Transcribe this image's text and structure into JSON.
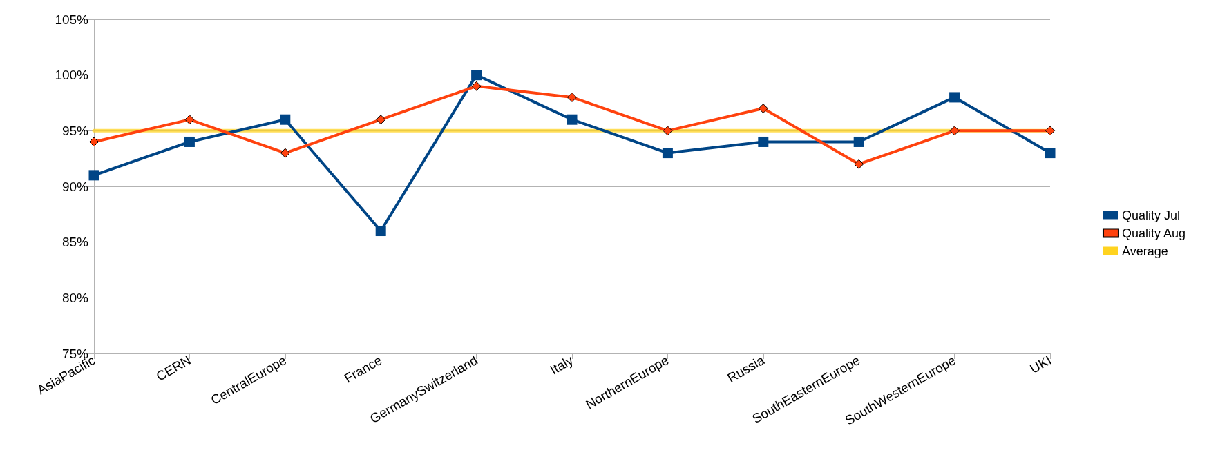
{
  "chart_data": {
    "type": "line",
    "categories": [
      "AsiaPacific",
      "CERN",
      "CentralEurope",
      "France",
      "GermanySwitzerland",
      "Italy",
      "NorthernEurope",
      "Russia",
      "SouthEasternEurope",
      "SouthWesternEurope",
      "UKI"
    ],
    "series": [
      {
        "name": "Quality Jul",
        "color": "#004586",
        "marker": "square",
        "values": [
          91,
          94,
          96,
          86,
          100,
          96,
          93,
          94,
          94,
          98,
          93
        ]
      },
      {
        "name": "Quality Aug",
        "color": "#ff420e",
        "marker": "diamond",
        "values": [
          94,
          96,
          93,
          96,
          99,
          98,
          95,
          97,
          92,
          95,
          95
        ]
      },
      {
        "name": "Average",
        "color": "#ffd320",
        "marker": "none",
        "values": [
          95,
          95,
          95,
          95,
          95,
          95,
          95,
          95,
          95,
          95,
          95
        ]
      }
    ],
    "ylim": [
      75,
      105
    ],
    "yticks": [
      {
        "value": 75,
        "label": "75%"
      },
      {
        "value": 80,
        "label": "80%"
      },
      {
        "value": 85,
        "label": "85%"
      },
      {
        "value": 90,
        "label": "90%"
      },
      {
        "value": 95,
        "label": "95%"
      },
      {
        "value": 100,
        "label": "100%"
      },
      {
        "value": 105,
        "label": "105%"
      }
    ],
    "grid": "y",
    "legend": "right",
    "line_style": "solid"
  }
}
